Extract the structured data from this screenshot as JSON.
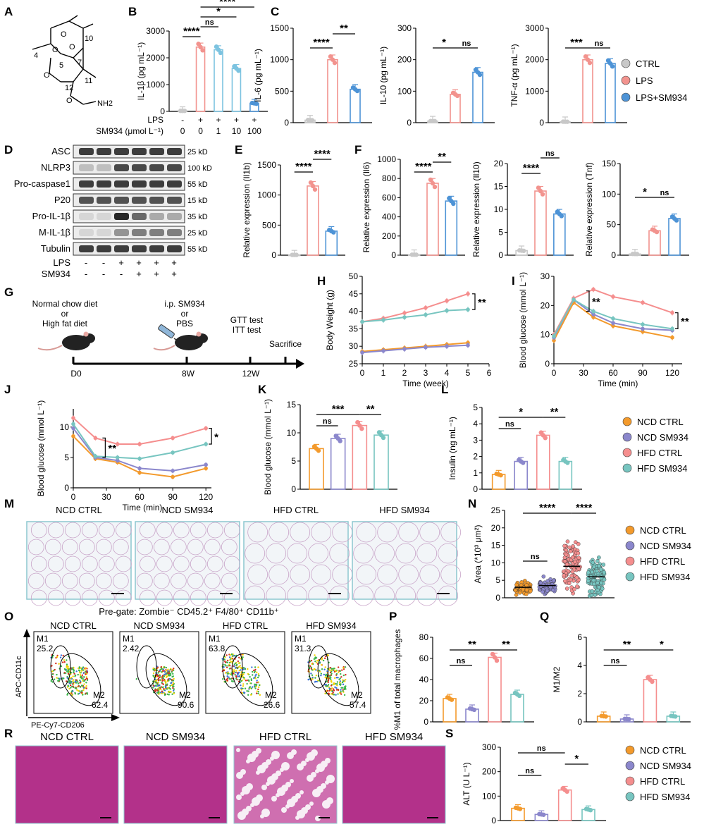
{
  "colors": {
    "ctrl": "#c8c8c8",
    "lps": "#f2938e",
    "lps_sm": "#4d93d6",
    "ncd_ctrl": "#f39a2c",
    "ncd_sm": "#8b87cc",
    "hfd_ctrl": "#f58e8e",
    "hfd_sm": "#77c5c0"
  },
  "panel_letters": {
    "A": "A",
    "B": "B",
    "C": "C",
    "D": "D",
    "E": "E",
    "F": "F",
    "G": "G",
    "H": "H",
    "I": "I",
    "J": "J",
    "K": "K",
    "L": "L",
    "M": "M",
    "N": "N",
    "O": "O",
    "P": "P",
    "Q": "Q",
    "R": "R",
    "S": "S"
  },
  "legend_lps": [
    "CTRL",
    "LPS",
    "LPS+SM934"
  ],
  "legend_mice": [
    "NCD CTRL",
    "NCD SM934",
    "HFD CTRL",
    "HFD SM934"
  ],
  "molecule": {
    "atoms": [
      "10",
      "4",
      "5",
      "7",
      "12",
      "11",
      "O",
      "O",
      "O",
      "O",
      "O",
      "NH2"
    ]
  },
  "chart_data": [
    {
      "id": "B",
      "type": "bar",
      "ylabel": "IL-1β (pg mL⁻¹)",
      "ylim": [
        0,
        3000
      ],
      "yticks": [
        "0",
        "1000",
        "2000",
        "3000"
      ],
      "categories": [
        "CTRL",
        "LPS",
        "LPS+1",
        "LPS+10",
        "LPS+100"
      ],
      "values": [
        20,
        2400,
        2300,
        1600,
        300
      ],
      "xrow1_label": "LPS",
      "xrow1": [
        "-",
        "+",
        "+",
        "+",
        "+"
      ],
      "xrow2_label": "SM934 (μmol L⁻¹)",
      "xrow2": [
        "0",
        "0",
        "1",
        "10",
        "100"
      ],
      "sig": [
        "****",
        "ns",
        "*",
        "****"
      ]
    },
    {
      "id": "C1",
      "type": "bar",
      "ylabel": "IL-6 (pg mL⁻¹)",
      "ylim": [
        0,
        1500
      ],
      "yticks": [
        "0",
        "500",
        "1000",
        "1500"
      ],
      "categories": [
        "CTRL",
        "LPS",
        "LPS+SM934"
      ],
      "values": [
        40,
        1000,
        530
      ],
      "sig": [
        "****",
        "**"
      ]
    },
    {
      "id": "C2",
      "type": "bar",
      "ylabel": "IL-10 (pg mL⁻¹)",
      "ylim": [
        0,
        300
      ],
      "yticks": [
        "0",
        "100",
        "200",
        "300"
      ],
      "categories": [
        "CTRL",
        "LPS",
        "LPS+SM934"
      ],
      "values": [
        5,
        90,
        160
      ],
      "sig": [
        "*",
        "ns"
      ]
    },
    {
      "id": "C3",
      "type": "bar",
      "ylabel": "TNF-α (pg mL⁻¹)",
      "ylim": [
        0,
        3000
      ],
      "yticks": [
        "0",
        "1000",
        "2000",
        "3000"
      ],
      "categories": [
        "CTRL",
        "LPS",
        "LPS+SM934"
      ],
      "values": [
        30,
        2000,
        1880
      ],
      "sig": [
        "***",
        "ns"
      ]
    },
    {
      "id": "E",
      "type": "bar",
      "ylabel": "Relative expression (Il1b)",
      "ylim": [
        0,
        1500
      ],
      "yticks": [
        "0",
        "500",
        "1000",
        "1500"
      ],
      "categories": [
        "CTRL",
        "LPS",
        "LPS+SM934"
      ],
      "values": [
        5,
        1150,
        400
      ],
      "sig": [
        "****",
        "****"
      ]
    },
    {
      "id": "F1",
      "type": "bar",
      "ylabel": "Relative expression (Il6)",
      "ylim": [
        0,
        1000
      ],
      "yticks": [
        "0",
        "200",
        "400",
        "600",
        "800",
        "1000"
      ],
      "categories": [
        "CTRL",
        "LPS",
        "LPS+SM934"
      ],
      "values": [
        5,
        750,
        565
      ],
      "sig": [
        "****",
        "**"
      ]
    },
    {
      "id": "F2",
      "type": "bar",
      "ylabel": "Relative expression (Il10)",
      "ylim": [
        0,
        20
      ],
      "yticks": [
        "0",
        "5",
        "10",
        "15",
        "20"
      ],
      "categories": [
        "CTRL",
        "LPS",
        "LPS+SM934"
      ],
      "values": [
        1,
        14,
        9
      ],
      "sig": [
        "****",
        "ns"
      ]
    },
    {
      "id": "F3",
      "type": "bar",
      "ylabel": "Relative expression (Tnf)",
      "ylim": [
        0,
        150
      ],
      "yticks": [
        "0",
        "50",
        "100",
        "150"
      ],
      "categories": [
        "CTRL",
        "LPS",
        "LPS+SM934"
      ],
      "values": [
        2,
        40,
        60
      ],
      "sig": [
        "*",
        "ns"
      ]
    },
    {
      "id": "H",
      "type": "line",
      "xlabel": "Time (week)",
      "ylabel": "Body Weight (g)",
      "xlim": [
        0,
        6
      ],
      "ylim": [
        25,
        50
      ],
      "xticks": [
        "0",
        "1",
        "2",
        "3",
        "4",
        "5",
        "6"
      ],
      "yticks": [
        "25",
        "30",
        "35",
        "40",
        "45",
        "50"
      ],
      "x": [
        0,
        1,
        2,
        3,
        4,
        5
      ],
      "series": [
        {
          "name": "NCD CTRL",
          "values": [
            28.5,
            29,
            29.5,
            30,
            30.5,
            31
          ]
        },
        {
          "name": "NCD SM934",
          "values": [
            28.2,
            28.7,
            29.2,
            29.7,
            30,
            30.3
          ]
        },
        {
          "name": "HFD CTRL",
          "values": [
            37,
            38,
            39.5,
            41,
            43,
            45
          ]
        },
        {
          "name": "HFD SM934",
          "values": [
            37,
            37.5,
            38.3,
            39,
            40.2,
            40.5
          ]
        }
      ],
      "sig": [
        "**"
      ]
    },
    {
      "id": "I",
      "type": "line",
      "xlabel": "Time (min)",
      "ylabel": "Blood glucose (mmol L⁻¹)",
      "xlim": [
        0,
        130
      ],
      "ylim": [
        0,
        30
      ],
      "xticks": [
        "0",
        "30",
        "60",
        "90",
        "120"
      ],
      "yticks": [
        "0",
        "10",
        "20",
        "30"
      ],
      "x": [
        0,
        20,
        40,
        60,
        90,
        120
      ],
      "series": [
        {
          "name": "NCD CTRL",
          "values": [
            8,
            21,
            16,
            13,
            11,
            9
          ]
        },
        {
          "name": "NCD SM934",
          "values": [
            9,
            22,
            17,
            14,
            12,
            11.5
          ]
        },
        {
          "name": "HFD CTRL",
          "values": [
            10,
            22.5,
            25.5,
            23,
            21,
            17.5
          ]
        },
        {
          "name": "HFD SM934",
          "values": [
            9.5,
            22,
            18,
            15.5,
            13.5,
            12
          ]
        }
      ],
      "sig": [
        "**",
        "**"
      ]
    },
    {
      "id": "J",
      "type": "line",
      "xlabel": "Time (min)",
      "ylabel": "Blood glucose (mmol L⁻¹)",
      "xlim": [
        0,
        125
      ],
      "ylim": [
        0,
        13
      ],
      "xticks": [
        "0",
        "30",
        "60",
        "90",
        "120"
      ],
      "yticks": [
        "0",
        "5",
        "10"
      ],
      "x": [
        0,
        20,
        40,
        60,
        90,
        120
      ],
      "series": [
        {
          "name": "NCD CTRL",
          "values": [
            8.5,
            4.8,
            4.2,
            2.5,
            1.8,
            3.2
          ]
        },
        {
          "name": "NCD SM934",
          "values": [
            9.8,
            5,
            4.5,
            3.2,
            2.8,
            3.8
          ]
        },
        {
          "name": "HFD CTRL",
          "values": [
            11.5,
            8.2,
            7.2,
            7.2,
            8.2,
            9.8
          ]
        },
        {
          "name": "HFD SM934",
          "values": [
            10.5,
            5.2,
            5,
            4.8,
            5.8,
            7.2
          ]
        }
      ],
      "sig": [
        "**",
        "*"
      ]
    },
    {
      "id": "K",
      "type": "bar",
      "ylabel": "Blood glucose (mmol L⁻¹)",
      "ylim": [
        0,
        15
      ],
      "yticks": [
        "0",
        "5",
        "10",
        "15"
      ],
      "categories": [
        "NCD CTRL",
        "NCD SM934",
        "HFD CTRL",
        "HFD SM934"
      ],
      "values": [
        7.2,
        9,
        11.3,
        9.6
      ],
      "sig": [
        "ns",
        "***",
        "**"
      ]
    },
    {
      "id": "L",
      "type": "bar",
      "ylabel": "Insulin (ng mL⁻¹)",
      "ylim": [
        0,
        5
      ],
      "yticks": [
        "0",
        "1",
        "2",
        "3",
        "4",
        "5"
      ],
      "categories": [
        "NCD CTRL",
        "NCD SM934",
        "HFD CTRL",
        "HFD SM934"
      ],
      "values": [
        0.9,
        1.7,
        3.3,
        1.7
      ],
      "sig": [
        "ns",
        "*",
        "**"
      ]
    },
    {
      "id": "N",
      "type": "scatter",
      "ylabel": "Area (*10³ μm²)",
      "ylim": [
        0,
        25
      ],
      "yticks": [
        "0",
        "5",
        "10",
        "15",
        "20",
        "25"
      ],
      "categories": [
        "NCD CTRL",
        "NCD SM934",
        "HFD CTRL",
        "HFD SM934"
      ],
      "values": [
        3,
        3.5,
        9,
        6
      ],
      "sig": [
        "ns",
        "****",
        "****"
      ]
    },
    {
      "id": "P",
      "type": "bar",
      "ylabel": "%M1 of total macrophages",
      "ylim": [
        0,
        80
      ],
      "yticks": [
        "0",
        "20",
        "40",
        "60",
        "80"
      ],
      "categories": [
        "NCD CTRL",
        "NCD SM934",
        "HFD CTRL",
        "HFD SM934"
      ],
      "values": [
        22,
        12,
        61,
        26
      ],
      "sig": [
        "ns",
        "**",
        "**"
      ]
    },
    {
      "id": "Q",
      "type": "bar",
      "ylabel": "M1/M2",
      "ylim": [
        0,
        6
      ],
      "yticks": [
        "0",
        "2",
        "4",
        "6"
      ],
      "categories": [
        "NCD CTRL",
        "NCD SM934",
        "HFD CTRL",
        "HFD SM934"
      ],
      "values": [
        0.4,
        0.2,
        3,
        0.4
      ],
      "sig": [
        "ns",
        "**",
        "*"
      ]
    },
    {
      "id": "S",
      "type": "bar",
      "ylabel": "ALT (U L⁻¹)",
      "ylim": [
        0,
        300
      ],
      "yticks": [
        "0",
        "100",
        "200",
        "300"
      ],
      "categories": [
        "NCD CTRL",
        "NCD SM934",
        "HFD CTRL",
        "HFD SM934"
      ],
      "values": [
        50,
        25,
        125,
        45
      ],
      "sig": [
        "ns",
        "ns",
        "*"
      ]
    }
  ],
  "western": {
    "bands": [
      "ASC",
      "NLRP3",
      "Pro-caspase1",
      "P20",
      "Pro-IL-1β",
      "M-IL-1β",
      "Tubulin"
    ],
    "sizes": [
      "25 kD",
      "100 kD",
      "55 kD",
      "15 kD",
      "35 kD",
      "25 kD",
      "55 kD"
    ],
    "lps_label": "LPS",
    "lps": [
      "-",
      "-",
      "+",
      "+",
      "+",
      "+"
    ],
    "sm_label": "SM934",
    "sm": [
      "-",
      "-",
      "-",
      "+",
      "+",
      "+"
    ]
  },
  "timeline": {
    "diet": [
      "Normal chow diet",
      "or",
      "High fat diet"
    ],
    "treat": [
      "i.p. SM934",
      "or",
      "PBS"
    ],
    "tests": [
      "GTT test",
      "ITT test"
    ],
    "sacrifice": "Sacrifice",
    "ticks": [
      "D0",
      "8W",
      "12W"
    ]
  },
  "histology_M": [
    "NCD CTRL",
    "NCD SM934",
    "HFD CTRL",
    "HFD SM934"
  ],
  "histology_R": [
    "NCD CTRL",
    "NCD SM934",
    "HFD CTRL",
    "HFD SM934"
  ],
  "flow": {
    "pregate": "Pre-gate: Zombie⁻ CD45.2⁺ F4/80⁺ CD11b⁺",
    "ylabel": "APC-CD11c",
    "xlabel": "PE-Cy7-CD206",
    "plots": [
      {
        "title": "NCD CTRL",
        "m1": "25.2",
        "m2": "62.4"
      },
      {
        "title": "NCD SM934",
        "m1": "2.42",
        "m2": "90.6"
      },
      {
        "title": "HFD CTRL",
        "m1": "63.8",
        "m2": "26.6"
      },
      {
        "title": "HFD SM934",
        "m1": "31.3",
        "m2": "57.4"
      }
    ],
    "m1_label": "M1",
    "m2_label": "M2"
  }
}
